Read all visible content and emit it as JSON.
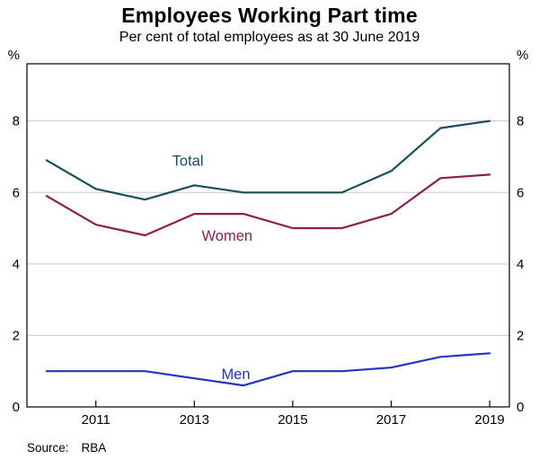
{
  "title": "Employees Working Part time",
  "subtitle": "Per cent of total employees as at 30 June 2019",
  "source": {
    "label": "Source:",
    "value": "RBA"
  },
  "axis": {
    "unit_left": "%",
    "unit_right": "%"
  },
  "chart_data": {
    "type": "line",
    "title": "Employees Working Part time",
    "subtitle": "Per cent of total employees as at 30 June 2019",
    "x": [
      2010,
      2011,
      2012,
      2013,
      2014,
      2015,
      2016,
      2017,
      2018,
      2019
    ],
    "series": [
      {
        "name": "Total",
        "color": "#164f59",
        "values": [
          6.9,
          6.1,
          5.8,
          6.2,
          6.0,
          6.0,
          6.0,
          6.6,
          7.8,
          8.0
        ],
        "label_at": {
          "x": 2012.55,
          "y": 6.75
        }
      },
      {
        "name": "Women",
        "color": "#8e1f4b",
        "values": [
          5.9,
          5.1,
          4.8,
          5.4,
          5.4,
          5.0,
          5.0,
          5.4,
          6.4,
          6.5
        ],
        "label_at": {
          "x": 2013.15,
          "y": 4.65
        }
      },
      {
        "name": "Men",
        "color": "#2433c0",
        "values": [
          1.0,
          1.0,
          1.0,
          0.8,
          0.6,
          1.0,
          1.0,
          1.1,
          1.4,
          1.5
        ],
        "label_at": {
          "x": 2013.55,
          "y": 0.78
        }
      }
    ],
    "xlim": [
      2009.6,
      2019.4
    ],
    "ylim": [
      0,
      9.6
    ],
    "yticks": [
      0,
      2,
      4,
      6,
      8
    ],
    "xticks": [
      2011,
      2013,
      2015,
      2017,
      2019
    ],
    "grid": true,
    "gridcolor": "#c9c9c9",
    "legend_position": "inline-labels",
    "xlabel": "",
    "ylabel": "%"
  }
}
